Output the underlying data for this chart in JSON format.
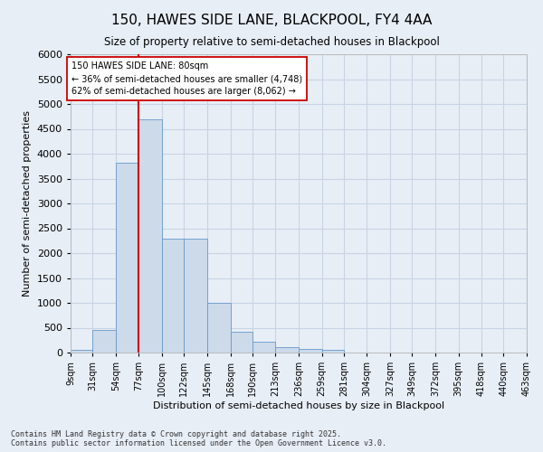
{
  "title_line1": "150, HAWES SIDE LANE, BLACKPOOL, FY4 4AA",
  "title_line2": "Size of property relative to semi-detached houses in Blackpool",
  "xlabel": "Distribution of semi-detached houses by size in Blackpool",
  "ylabel": "Number of semi-detached properties",
  "footnote": "Contains HM Land Registry data © Crown copyright and database right 2025.\nContains public sector information licensed under the Open Government Licence v3.0.",
  "bar_color": "#ccdaea",
  "bar_edge_color": "#6699cc",
  "grid_color": "#c8d4e4",
  "background_color": "#e8eef6",
  "vline_color": "#cc0000",
  "vline_x": 77,
  "annotation_text": "150 HAWES SIDE LANE: 80sqm\n← 36% of semi-detached houses are smaller (4,748)\n62% of semi-detached houses are larger (8,062) →",
  "annotation_box_color": "#ffffff",
  "annotation_box_edge": "#cc0000",
  "bin_edges": [
    9,
    31,
    54,
    77,
    100,
    122,
    145,
    168,
    190,
    213,
    236,
    259,
    281,
    304,
    327,
    349,
    372,
    395,
    418,
    440,
    463
  ],
  "bin_labels": [
    "9sqm",
    "31sqm",
    "54sqm",
    "77sqm",
    "100sqm",
    "122sqm",
    "145sqm",
    "168sqm",
    "190sqm",
    "213sqm",
    "236sqm",
    "259sqm",
    "281sqm",
    "304sqm",
    "327sqm",
    "349sqm",
    "372sqm",
    "395sqm",
    "418sqm",
    "440sqm",
    "463sqm"
  ],
  "counts": [
    50,
    450,
    3820,
    4700,
    2300,
    2300,
    1000,
    410,
    220,
    110,
    75,
    55,
    0,
    0,
    0,
    0,
    0,
    0,
    0,
    0
  ],
  "ylim": [
    0,
    6000
  ],
  "yticks": [
    0,
    500,
    1000,
    1500,
    2000,
    2500,
    3000,
    3500,
    4000,
    4500,
    5000,
    5500,
    6000
  ]
}
